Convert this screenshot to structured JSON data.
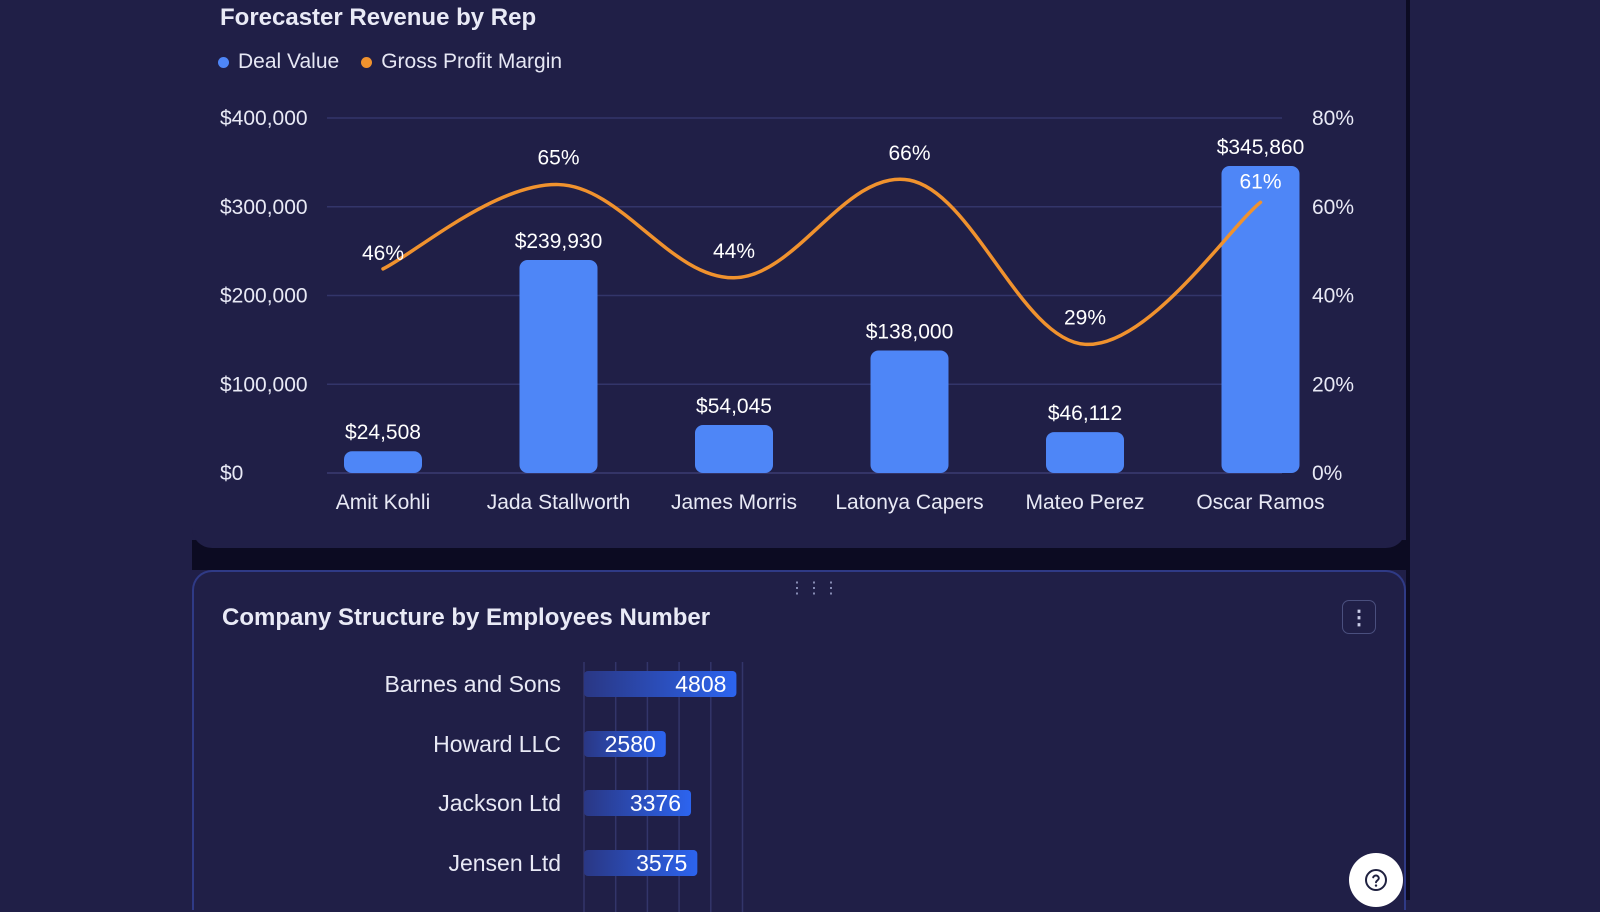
{
  "revenue_card": {
    "title": "Forecaster Revenue by Rep",
    "legend": [
      {
        "label": "Deal Value",
        "color": "#4e86f7"
      },
      {
        "label": "Gross Profit Margin",
        "color": "#f0922e"
      }
    ]
  },
  "structure_card": {
    "title": "Company Structure by Employees Number",
    "menu_icon": "vertical-ellipsis-icon",
    "drag_icon": "drag-handle-icon"
  },
  "help_icon": "help-icon",
  "chart_data": [
    {
      "type": "bar",
      "title": "Forecaster Revenue by Rep",
      "categories": [
        "Amit Kohli",
        "Jada Stallworth",
        "James Morris",
        "Latonya Capers",
        "Mateo Perez",
        "Oscar Ramos"
      ],
      "series": [
        {
          "name": "Deal Value",
          "type": "bar",
          "axis": "left",
          "color": "#4e86f7",
          "values": [
            24508,
            239930,
            54045,
            138000,
            46112,
            345860
          ],
          "labels": [
            "$24,508",
            "$239,930",
            "$54,045",
            "$138,000",
            "$46,112",
            "$345,860"
          ]
        },
        {
          "name": "Gross Profit Margin",
          "type": "line",
          "axis": "right",
          "color": "#f0922e",
          "values": [
            46,
            65,
            44,
            66,
            29,
            61
          ],
          "labels": [
            "46%",
            "65%",
            "44%",
            "66%",
            "29%",
            "61%"
          ]
        }
      ],
      "ylim_left": [
        0,
        400000
      ],
      "ylim_right": [
        0,
        80
      ],
      "left_ticks": [
        "$0",
        "$100,000",
        "$200,000",
        "$300,000",
        "$400,000"
      ],
      "right_ticks": [
        "0%",
        "20%",
        "40%",
        "60%",
        "80%"
      ],
      "grid": true,
      "legend_position": "top-left"
    },
    {
      "type": "bar",
      "orientation": "horizontal",
      "title": "Company Structure by Employees Number",
      "categories": [
        "Barnes and Sons",
        "Howard LLC",
        "Jackson Ltd",
        "Jensen Ltd"
      ],
      "values": [
        4808,
        2580,
        3376,
        3575
      ],
      "xlim": [
        0,
        5000
      ],
      "grid": true,
      "colors": {
        "start": "#2a3784",
        "end": "#2c64ef"
      }
    }
  ]
}
